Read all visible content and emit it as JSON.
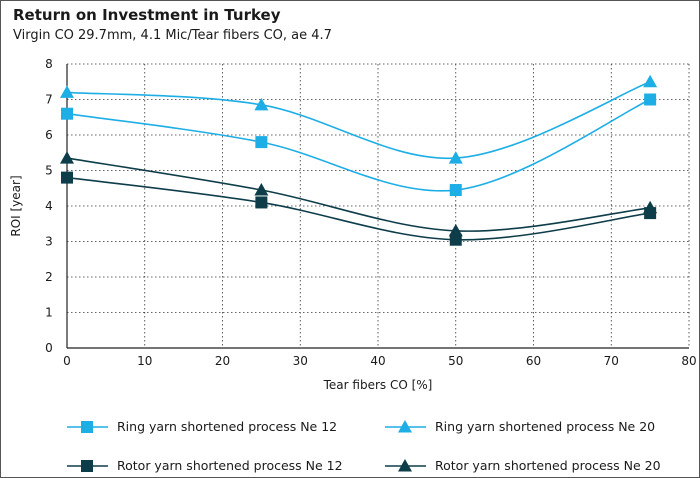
{
  "chart_data": {
    "type": "line",
    "title": "Return on Investment in Turkey",
    "subtitle": "Virgin CO 29.7mm, 4.1 Mic/Tear fibers CO, ae 4.7",
    "xlabel": "Tear fibers CO [%]",
    "ylabel": "ROI [year]",
    "xlim": [
      0,
      80
    ],
    "ylim": [
      0,
      8
    ],
    "x_ticks": [
      "0",
      "10",
      "20",
      "30",
      "40",
      "50",
      "60",
      "70",
      "80"
    ],
    "y_ticks": [
      "0",
      "1",
      "2",
      "3",
      "4",
      "5",
      "6",
      "7",
      "8"
    ],
    "grid": "dotted",
    "legend_position": "bottom",
    "series": [
      {
        "name": "Ring yarn shortened process Ne 12",
        "marker": "square",
        "color": "#1eaee6",
        "x": [
          0,
          25,
          50,
          75
        ],
        "y": [
          6.6,
          5.8,
          4.45,
          7.0
        ]
      },
      {
        "name": "Ring yarn shortened process Ne 20",
        "marker": "triangle",
        "color": "#1eaee6",
        "x": [
          0,
          25,
          50,
          75
        ],
        "y": [
          7.2,
          6.85,
          5.35,
          7.5
        ]
      },
      {
        "name": "Rotor yarn shortened process Ne 12",
        "marker": "square",
        "color": "#0e3d4a",
        "x": [
          0,
          25,
          50,
          75
        ],
        "y": [
          4.8,
          4.1,
          3.05,
          3.8
        ]
      },
      {
        "name": "Rotor yarn shortened process Ne 20",
        "marker": "triangle",
        "color": "#0e3d4a",
        "x": [
          0,
          25,
          50,
          75
        ],
        "y": [
          5.35,
          4.45,
          3.3,
          3.95
        ]
      }
    ]
  }
}
